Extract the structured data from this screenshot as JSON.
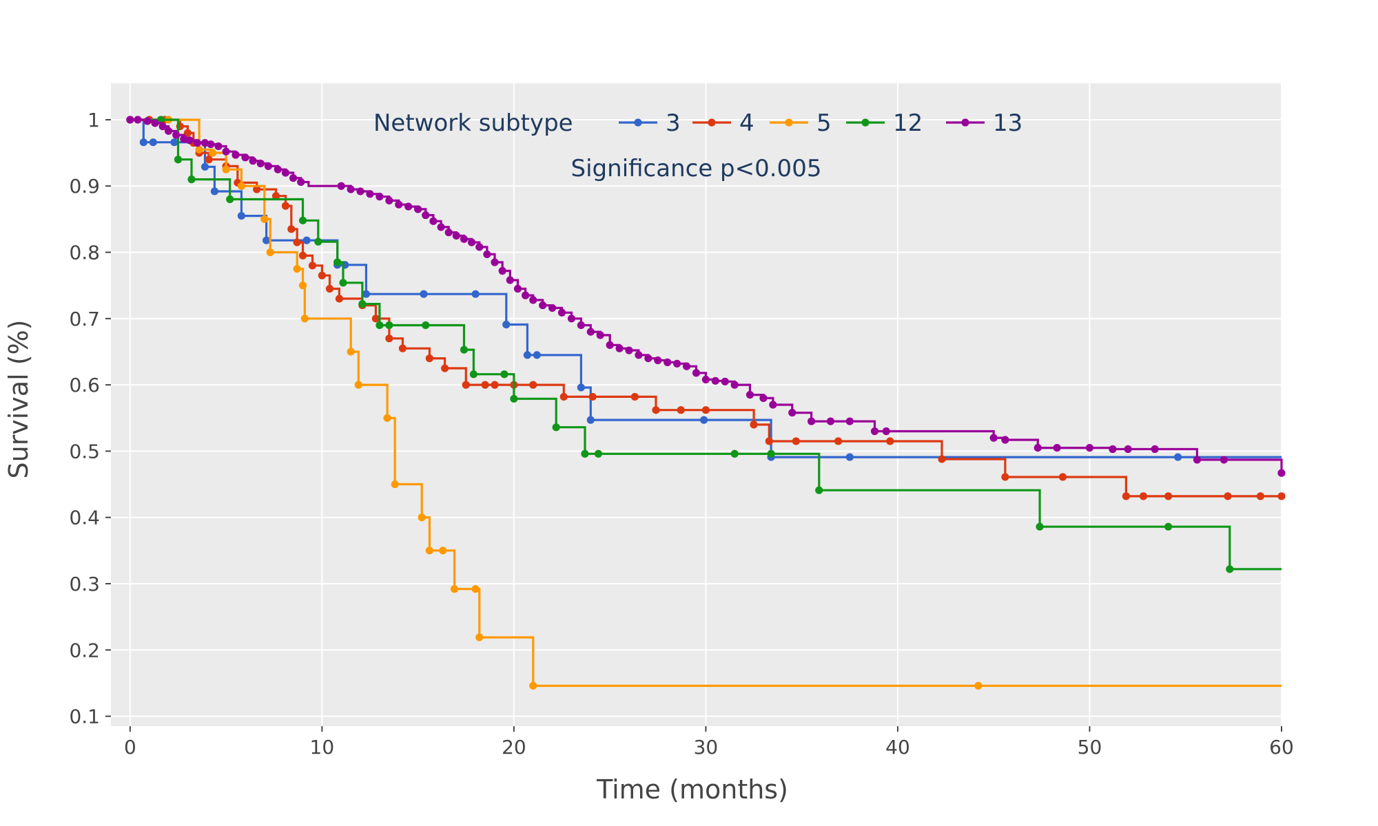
{
  "chart_data": {
    "type": "line",
    "step": "hv",
    "xlabel": "Time (months)",
    "ylabel": "Survival (%)",
    "xlim": [
      -1,
      60
    ],
    "ylim": [
      0.085,
      1.055
    ],
    "xticks": [
      0,
      10,
      20,
      30,
      40,
      50,
      60
    ],
    "yticks": [
      0.1,
      0.2,
      0.3,
      0.4,
      0.5,
      0.6,
      0.7,
      0.8,
      0.9,
      1
    ],
    "ytick_labels": [
      "0.1",
      "0.2",
      "0.3",
      "0.4",
      "0.5",
      "0.6",
      "0.7",
      "0.8",
      "0.9",
      "1"
    ],
    "xtick_labels": [
      "0",
      "10",
      "20",
      "30",
      "40",
      "50",
      "60"
    ],
    "grid": true,
    "plot_bg": "#ebebeb",
    "grid_color": "#ffffff",
    "legend": {
      "title": "Network subtype",
      "position": "top-center",
      "orientation": "horizontal"
    },
    "annotations": [
      {
        "text": "Significance p<0.005",
        "x": 29.5,
        "y": 0.915
      }
    ],
    "series": [
      {
        "name": "3",
        "color": "#3366cc",
        "x": [
          0,
          0.7,
          1.2,
          2.3,
          3.9,
          4.4,
          5.2,
          5.8,
          7.1,
          9.2,
          10.8,
          11.2,
          12.3,
          15.3,
          18.0,
          19.6,
          20.7,
          21.2,
          23.5,
          24.0,
          29.9,
          33.4,
          37.5,
          54.6,
          60
        ],
        "y": [
          1.0,
          0.966,
          0.966,
          0.966,
          0.929,
          0.892,
          0.892,
          0.855,
          0.818,
          0.818,
          0.781,
          0.781,
          0.737,
          0.737,
          0.737,
          0.691,
          0.645,
          0.645,
          0.596,
          0.547,
          0.547,
          0.491,
          0.491,
          0.491,
          0.491
        ],
        "markers": [
          0,
          0.7,
          1.2,
          2.3,
          3.9,
          4.4,
          5.8,
          7.1,
          9.2,
          10.8,
          11.2,
          12.3,
          15.3,
          18.0,
          19.6,
          20.7,
          21.2,
          23.5,
          24.0,
          29.9,
          33.4,
          37.5,
          54.6
        ]
      },
      {
        "name": "4",
        "color": "#dc3912",
        "x": [
          0,
          1.0,
          1.8,
          2.6,
          3.0,
          3.3,
          3.6,
          4.1,
          5.0,
          5.6,
          6.6,
          7.6,
          8.1,
          8.4,
          8.7,
          9.0,
          9.5,
          10.0,
          10.4,
          10.9,
          12.1,
          12.8,
          13.5,
          14.2,
          15.6,
          16.4,
          17.5,
          18.5,
          19.0,
          20.0,
          21.0,
          22.6,
          24.1,
          26.3,
          27.4,
          28.7,
          30.0,
          32.5,
          33.3,
          34.7,
          36.9,
          39.6,
          42.3,
          45.6,
          48.6,
          51.9,
          52.8,
          54.1,
          57.2,
          58.9,
          60
        ],
        "y": [
          1.0,
          1.0,
          1.0,
          0.99,
          0.98,
          0.965,
          0.95,
          0.94,
          0.93,
          0.905,
          0.895,
          0.885,
          0.87,
          0.835,
          0.815,
          0.795,
          0.78,
          0.765,
          0.745,
          0.73,
          0.72,
          0.7,
          0.67,
          0.655,
          0.64,
          0.625,
          0.6,
          0.6,
          0.6,
          0.6,
          0.6,
          0.582,
          0.582,
          0.582,
          0.562,
          0.562,
          0.562,
          0.54,
          0.515,
          0.515,
          0.515,
          0.515,
          0.488,
          0.461,
          0.461,
          0.432,
          0.432,
          0.432,
          0.432,
          0.432,
          0.432
        ],
        "markers": [
          1.0,
          1.8,
          2.6,
          3.0,
          3.3,
          3.6,
          4.1,
          5.0,
          5.6,
          6.6,
          7.6,
          8.1,
          8.4,
          8.7,
          9.0,
          9.5,
          10.0,
          10.4,
          10.9,
          12.1,
          12.8,
          13.5,
          14.2,
          15.6,
          16.4,
          17.5,
          18.5,
          19.0,
          20.0,
          21.0,
          22.6,
          24.1,
          26.3,
          27.4,
          28.7,
          30.0,
          32.5,
          33.3,
          34.7,
          36.9,
          39.6,
          42.3,
          45.6,
          48.6,
          51.9,
          52.8,
          54.1,
          57.2,
          58.9,
          60
        ]
      },
      {
        "name": "5",
        "color": "#ff9900",
        "x": [
          0,
          2.0,
          3.6,
          4.3,
          5.0,
          5.8,
          7.0,
          7.3,
          8.7,
          9.0,
          9.1,
          11.5,
          11.9,
          13.4,
          13.8,
          15.2,
          15.6,
          16.3,
          16.9,
          18.0,
          18.2,
          21.0,
          44.2,
          60
        ],
        "y": [
          1.0,
          1.0,
          0.955,
          0.95,
          0.925,
          0.9,
          0.85,
          0.8,
          0.775,
          0.75,
          0.7,
          0.65,
          0.6,
          0.55,
          0.45,
          0.4,
          0.35,
          0.35,
          0.292,
          0.292,
          0.219,
          0.146,
          0.146,
          0.146
        ],
        "markers": [
          2.0,
          3.6,
          4.3,
          5.0,
          5.8,
          7.0,
          7.3,
          8.7,
          9.0,
          9.1,
          11.5,
          11.9,
          13.4,
          13.8,
          15.2,
          15.6,
          16.3,
          16.9,
          18.0,
          18.2,
          21.0,
          44.2
        ]
      },
      {
        "name": "12",
        "color": "#109618",
        "x": [
          0,
          1.6,
          2.5,
          3.2,
          5.2,
          9.0,
          9.8,
          10.8,
          11.1,
          12.1,
          13.0,
          13.5,
          15.4,
          17.4,
          17.9,
          19.5,
          20.0,
          22.2,
          23.7,
          24.4,
          31.5,
          33.4,
          35.9,
          47.4,
          54.1,
          57.3,
          60
        ],
        "y": [
          1.0,
          1.0,
          0.94,
          0.91,
          0.88,
          0.848,
          0.816,
          0.785,
          0.754,
          0.722,
          0.69,
          0.69,
          0.69,
          0.653,
          0.616,
          0.616,
          0.579,
          0.536,
          0.496,
          0.496,
          0.496,
          0.496,
          0.441,
          0.386,
          0.386,
          0.322,
          0.322
        ],
        "markers": [
          1.6,
          2.5,
          3.2,
          5.2,
          9.0,
          9.8,
          10.8,
          11.1,
          12.1,
          13.0,
          13.5,
          15.4,
          17.4,
          17.9,
          19.5,
          20.0,
          22.2,
          23.7,
          24.4,
          31.5,
          33.4,
          35.9,
          47.4,
          54.1,
          57.3
        ]
      },
      {
        "name": "13",
        "color": "#990099",
        "x": [
          0,
          0.4,
          0.9,
          1.3,
          1.7,
          2.0,
          2.4,
          2.8,
          3.1,
          3.5,
          3.9,
          4.2,
          4.6,
          5.0,
          5.5,
          6.0,
          6.4,
          6.8,
          7.2,
          7.7,
          8.1,
          8.5,
          8.9,
          9.3,
          10.0,
          11.0,
          11.5,
          12.0,
          12.5,
          13.0,
          13.5,
          14.0,
          14.5,
          15.0,
          15.4,
          15.8,
          16.2,
          16.6,
          17.0,
          17.4,
          17.8,
          18.2,
          18.6,
          19.0,
          19.4,
          19.8,
          20.2,
          20.6,
          21.0,
          21.5,
          22.0,
          22.5,
          23.0,
          23.5,
          24.0,
          24.5,
          25.0,
          25.5,
          26.0,
          26.5,
          27.0,
          27.5,
          28.0,
          28.5,
          29.0,
          29.5,
          30.0,
          30.5,
          31.0,
          31.5,
          32.3,
          33.0,
          33.5,
          34.5,
          35.5,
          36.5,
          37.5,
          38.8,
          39.4,
          45.0,
          45.6,
          47.3,
          48.3,
          50.0,
          51.2,
          52.0,
          53.4,
          55.6,
          57.0,
          60
        ],
        "y": [
          1.0,
          1.0,
          0.998,
          0.995,
          0.99,
          0.983,
          0.977,
          0.971,
          0.969,
          0.965,
          0.965,
          0.963,
          0.96,
          0.952,
          0.947,
          0.943,
          0.938,
          0.934,
          0.93,
          0.925,
          0.92,
          0.912,
          0.906,
          0.9,
          0.9,
          0.9,
          0.895,
          0.892,
          0.888,
          0.884,
          0.878,
          0.872,
          0.869,
          0.865,
          0.856,
          0.847,
          0.838,
          0.83,
          0.825,
          0.82,
          0.815,
          0.808,
          0.797,
          0.785,
          0.772,
          0.758,
          0.745,
          0.735,
          0.728,
          0.72,
          0.716,
          0.709,
          0.7,
          0.69,
          0.68,
          0.675,
          0.66,
          0.655,
          0.652,
          0.645,
          0.64,
          0.637,
          0.634,
          0.632,
          0.628,
          0.618,
          0.608,
          0.606,
          0.605,
          0.6,
          0.585,
          0.58,
          0.57,
          0.558,
          0.545,
          0.545,
          0.545,
          0.53,
          0.53,
          0.52,
          0.517,
          0.505,
          0.505,
          0.505,
          0.503,
          0.503,
          0.503,
          0.487,
          0.487,
          0.467
        ],
        "markers": [
          0,
          0.4,
          0.9,
          1.3,
          1.7,
          2.0,
          2.4,
          2.8,
          3.1,
          3.5,
          3.9,
          4.2,
          4.6,
          5.0,
          5.5,
          6.0,
          6.4,
          6.8,
          7.2,
          7.7,
          8.1,
          8.5,
          8.9,
          11.0,
          11.5,
          12.0,
          12.5,
          13.0,
          13.5,
          14.0,
          14.5,
          15.0,
          15.4,
          15.8,
          16.2,
          16.6,
          17.0,
          17.4,
          17.8,
          18.2,
          18.6,
          19.0,
          19.4,
          19.8,
          20.2,
          20.6,
          21.0,
          21.5,
          22.0,
          22.5,
          23.0,
          23.5,
          24.0,
          24.5,
          25.0,
          25.5,
          26.0,
          26.5,
          27.0,
          27.5,
          28.0,
          28.5,
          29.0,
          29.5,
          30.0,
          30.5,
          31.0,
          31.5,
          32.3,
          33.0,
          33.5,
          34.5,
          35.5,
          36.5,
          37.5,
          38.8,
          39.4,
          45.0,
          45.6,
          47.3,
          48.3,
          50.0,
          51.2,
          52.0,
          53.4,
          55.6,
          57.0,
          60
        ]
      }
    ]
  }
}
